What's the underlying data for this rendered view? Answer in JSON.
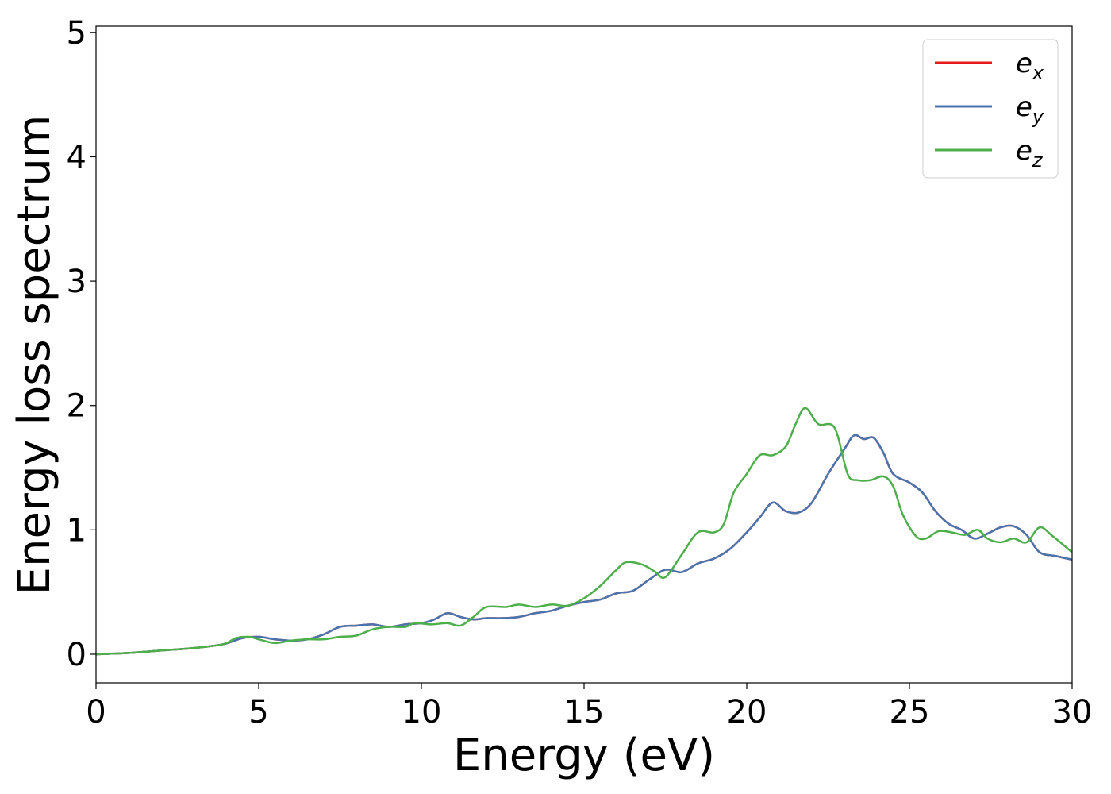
{
  "chart_data": {
    "type": "line",
    "title": "",
    "xlabel": "Energy (eV)",
    "ylabel": "Energy loss spectrum",
    "xlim": [
      0,
      30
    ],
    "ylim": [
      -0.23,
      5.05
    ],
    "xticks": [
      "0",
      "5",
      "10",
      "15",
      "20",
      "25",
      "30"
    ],
    "yticks": [
      "0",
      "1",
      "2",
      "3",
      "4",
      "5"
    ],
    "grid": false,
    "legend_position": "top-right",
    "series": [
      {
        "name": "e_x",
        "label_main": "e",
        "label_sub": "x",
        "color": "#e41a1c",
        "x": [
          0,
          1,
          2,
          3,
          3.9,
          4.5,
          5,
          5.5,
          6,
          6.5,
          7,
          7.5,
          8,
          8.5,
          9,
          9.5,
          10,
          10.4,
          10.8,
          11.2,
          11.6,
          12,
          12.5,
          13,
          13.5,
          14,
          14.5,
          15,
          15.5,
          16,
          16.5,
          17,
          17.5,
          18,
          18.5,
          19,
          19.5,
          20,
          20.4,
          20.8,
          21.2,
          21.6,
          22,
          22.5,
          23,
          23.3,
          23.6,
          23.9,
          24.2,
          24.5,
          25,
          25.4,
          25.8,
          26.2,
          26.6,
          27,
          27.4,
          27.8,
          28.2,
          28.6,
          29,
          29.5,
          30
        ],
        "y": [
          0,
          0.01,
          0.03,
          0.05,
          0.08,
          0.13,
          0.14,
          0.12,
          0.11,
          0.12,
          0.16,
          0.22,
          0.23,
          0.24,
          0.22,
          0.24,
          0.25,
          0.28,
          0.33,
          0.3,
          0.28,
          0.29,
          0.29,
          0.3,
          0.33,
          0.35,
          0.39,
          0.42,
          0.44,
          0.49,
          0.51,
          0.6,
          0.68,
          0.66,
          0.73,
          0.77,
          0.85,
          0.98,
          1.1,
          1.22,
          1.15,
          1.14,
          1.22,
          1.45,
          1.65,
          1.76,
          1.73,
          1.74,
          1.62,
          1.45,
          1.38,
          1.3,
          1.15,
          1.05,
          1.0,
          0.93,
          0.97,
          1.02,
          1.03,
          0.96,
          0.82,
          0.79,
          0.76
        ]
      },
      {
        "name": "e_y",
        "label_main": "e",
        "label_sub": "y",
        "color": "#4a74ad",
        "x": [
          0,
          1,
          2,
          3,
          3.9,
          4.5,
          5,
          5.5,
          6,
          6.5,
          7,
          7.5,
          8,
          8.5,
          9,
          9.5,
          10,
          10.4,
          10.8,
          11.2,
          11.6,
          12,
          12.5,
          13,
          13.5,
          14,
          14.5,
          15,
          15.5,
          16,
          16.5,
          17,
          17.5,
          18,
          18.5,
          19,
          19.5,
          20,
          20.4,
          20.8,
          21.2,
          21.6,
          22,
          22.5,
          23,
          23.3,
          23.6,
          23.9,
          24.2,
          24.5,
          25,
          25.4,
          25.8,
          26.2,
          26.6,
          27,
          27.4,
          27.8,
          28.2,
          28.6,
          29,
          29.5,
          30
        ],
        "y": [
          0,
          0.01,
          0.03,
          0.05,
          0.08,
          0.13,
          0.14,
          0.12,
          0.11,
          0.12,
          0.16,
          0.22,
          0.23,
          0.24,
          0.22,
          0.24,
          0.25,
          0.28,
          0.33,
          0.3,
          0.28,
          0.29,
          0.29,
          0.3,
          0.33,
          0.35,
          0.39,
          0.42,
          0.44,
          0.49,
          0.51,
          0.6,
          0.68,
          0.66,
          0.73,
          0.77,
          0.85,
          0.98,
          1.1,
          1.22,
          1.15,
          1.14,
          1.22,
          1.45,
          1.65,
          1.76,
          1.73,
          1.74,
          1.62,
          1.45,
          1.38,
          1.3,
          1.15,
          1.05,
          1.0,
          0.93,
          0.97,
          1.02,
          1.03,
          0.96,
          0.82,
          0.79,
          0.76
        ]
      },
      {
        "name": "e_z",
        "label_main": "e",
        "label_sub": "z",
        "color": "#4daf4a",
        "x": [
          0,
          1,
          2,
          3,
          3.9,
          4.3,
          4.7,
          5,
          5.5,
          6,
          6.5,
          7,
          7.5,
          8,
          8.5,
          9,
          9.5,
          9.8,
          10.3,
          10.8,
          11.2,
          11.6,
          12,
          12.6,
          13,
          13.5,
          14,
          14.5,
          15,
          15.5,
          16,
          16.3,
          16.8,
          17.2,
          17.5,
          18,
          18.5,
          19,
          19.3,
          19.6,
          20,
          20.4,
          20.8,
          21.2,
          21.5,
          21.8,
          22.2,
          22.7,
          23.1,
          23.4,
          23.8,
          24.2,
          24.5,
          24.8,
          25.2,
          25.5,
          25.9,
          26.3,
          26.7,
          27.1,
          27.4,
          27.8,
          28.2,
          28.6,
          29,
          29.4,
          30
        ],
        "y": [
          0,
          0.01,
          0.03,
          0.05,
          0.08,
          0.13,
          0.14,
          0.12,
          0.09,
          0.11,
          0.12,
          0.12,
          0.14,
          0.15,
          0.2,
          0.22,
          0.22,
          0.25,
          0.24,
          0.25,
          0.23,
          0.3,
          0.38,
          0.38,
          0.4,
          0.38,
          0.4,
          0.39,
          0.45,
          0.55,
          0.68,
          0.74,
          0.72,
          0.66,
          0.62,
          0.8,
          0.98,
          0.98,
          1.05,
          1.3,
          1.45,
          1.6,
          1.6,
          1.67,
          1.85,
          1.98,
          1.85,
          1.82,
          1.45,
          1.4,
          1.4,
          1.43,
          1.35,
          1.12,
          0.95,
          0.93,
          0.99,
          0.98,
          0.96,
          1.0,
          0.93,
          0.9,
          0.93,
          0.9,
          1.02,
          0.95,
          0.82
        ]
      }
    ]
  }
}
